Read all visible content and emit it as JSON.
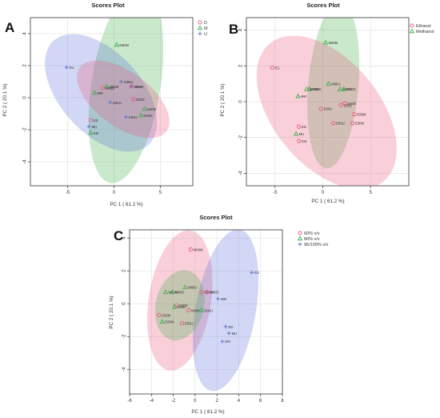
{
  "colors": {
    "D": "#e8557a",
    "M": "#3fae49",
    "U": "#5b6fd6",
    "frame": "#333333",
    "grid": "#dddddd"
  },
  "chart_data": [
    {
      "panel_label": "A",
      "type": "scatter",
      "title": "Scores Plot",
      "xlabel": "PC 1 ( 61.2 %)",
      "ylabel": "PC 2 ( 20.1 %)",
      "xlim": [
        -9,
        8.5
      ],
      "ylim": [
        -5.5,
        5
      ],
      "x_ticks": [
        -5,
        0,
        5
      ],
      "y_ticks": [
        -4,
        -2,
        0,
        2,
        4
      ],
      "grid": true,
      "legend_position": "top-right",
      "legend": [
        {
          "label": "D",
          "marker": "circle",
          "color_key": "D"
        },
        {
          "label": "M",
          "marker": "triangle",
          "color_key": "M"
        },
        {
          "label": "U",
          "marker": "plus",
          "color_key": "U"
        }
      ],
      "ellipses": [
        {
          "group": "M",
          "cx": 1.3,
          "cy": 0.8,
          "rx": 6.4,
          "ry": 3.6,
          "angle": 70
        },
        {
          "group": "U",
          "cx": -1.4,
          "cy": 0.3,
          "rx": 6.4,
          "ry": 3.0,
          "angle": -22
        },
        {
          "group": "D",
          "cx": 1.0,
          "cy": -0.1,
          "rx": 5.2,
          "ry": 1.9,
          "angle": -18
        }
      ],
      "points": [
        {
          "label": "EU",
          "x": -5.1,
          "y": 1.9,
          "group": "U"
        },
        {
          "label": "M60M",
          "x": 0.3,
          "y": 3.3,
          "group": "M"
        },
        {
          "label": "M80U",
          "x": 0.8,
          "y": 1.0,
          "group": "U"
        },
        {
          "label": "M80M",
          "x": -0.8,
          "y": 0.7,
          "group": "M"
        },
        {
          "label": "M80D",
          "x": -1.2,
          "y": 0.6,
          "group": "D"
        },
        {
          "label": "M60U",
          "x": 1.9,
          "y": 0.7,
          "group": "U"
        },
        {
          "label": "M60D",
          "x": 1.9,
          "y": 0.7,
          "group": "D"
        },
        {
          "label": "MM",
          "x": -2.1,
          "y": 0.3,
          "group": "M"
        },
        {
          "label": "E80U",
          "x": -0.4,
          "y": -0.3,
          "group": "U"
        },
        {
          "label": "E80D",
          "x": 2.1,
          "y": -0.1,
          "group": "D"
        },
        {
          "label": "E80M",
          "x": 3.3,
          "y": -0.7,
          "group": "M"
        },
        {
          "label": "E60M",
          "x": 2.9,
          "y": -1.1,
          "group": "M"
        },
        {
          "label": "E60U",
          "x": 1.3,
          "y": -1.2,
          "group": "U"
        },
        {
          "label": "ED",
          "x": -2.5,
          "y": -1.4,
          "group": "D"
        },
        {
          "label": "MU",
          "x": -2.7,
          "y": -1.8,
          "group": "U"
        },
        {
          "label": "EM",
          "x": -2.5,
          "y": -2.2,
          "group": "M"
        }
      ]
    },
    {
      "panel_label": "B",
      "type": "scatter",
      "title": "Scores Plot",
      "xlabel": "PC 1 ( 61.2 %)",
      "ylabel": "PC 2 ( 20.1 %)",
      "xlim": [
        -8,
        9
      ],
      "ylim": [
        -4.7,
        4.7
      ],
      "x_ticks": [
        -5,
        0,
        5
      ],
      "y_ticks": [
        -4,
        -2,
        0,
        2,
        4
      ],
      "grid": true,
      "legend_position": "top-right",
      "legend": [
        {
          "label": "Ethanol",
          "marker": "circle",
          "color_key": "D"
        },
        {
          "label": "Methanol",
          "marker": "triangle",
          "color_key": "M"
        }
      ],
      "ellipses": [
        {
          "group": "M",
          "cx": 1.1,
          "cy": 0.9,
          "rx": 4.7,
          "ry": 2.6,
          "angle": 78
        },
        {
          "group": "D",
          "cx": 0.4,
          "cy": -0.6,
          "rx": 7.7,
          "ry": 3.6,
          "angle": -20
        }
      ],
      "points": [
        {
          "label": "EU",
          "x": -5.3,
          "y": 1.9,
          "group": "D"
        },
        {
          "label": "M60M",
          "x": 0.3,
          "y": 3.3,
          "group": "M"
        },
        {
          "label": "M80U",
          "x": 0.6,
          "y": 1.0,
          "group": "M"
        },
        {
          "label": "M80D",
          "x": -1.4,
          "y": 0.7,
          "group": "M"
        },
        {
          "label": "M80M",
          "x": -1.7,
          "y": 0.7,
          "group": "M"
        },
        {
          "label": "M60U",
          "x": 1.8,
          "y": 0.7,
          "group": "M"
        },
        {
          "label": "M60D",
          "x": 2.2,
          "y": 0.7,
          "group": "M"
        },
        {
          "label": "MM",
          "x": -2.6,
          "y": 0.3,
          "group": "M"
        },
        {
          "label": "E80U",
          "x": -0.2,
          "y": -0.4,
          "group": "D"
        },
        {
          "label": "E60D",
          "x": 1.9,
          "y": -0.2,
          "group": "D"
        },
        {
          "label": "E80D",
          "x": 2.3,
          "y": -0.1,
          "group": "D"
        },
        {
          "label": "E80M",
          "x": 3.3,
          "y": -0.7,
          "group": "D"
        },
        {
          "label": "E60M",
          "x": 3.1,
          "y": -1.2,
          "group": "D"
        },
        {
          "label": "E60U",
          "x": 1.1,
          "y": -1.2,
          "group": "D"
        },
        {
          "label": "ED",
          "x": -2.5,
          "y": -1.4,
          "group": "D"
        },
        {
          "label": "MU",
          "x": -2.8,
          "y": -1.8,
          "group": "M"
        },
        {
          "label": "EM",
          "x": -2.5,
          "y": -2.2,
          "group": "D"
        }
      ]
    },
    {
      "panel_label": "C",
      "type": "scatter",
      "title": "Scores Plot",
      "xlabel": "PC 1 ( 61.2 %)",
      "ylabel": "PC 2 ( 20.1 %)",
      "xlim": [
        -6,
        8
      ],
      "ylim": [
        -5.5,
        4.5
      ],
      "x_ticks": [
        -6,
        -4,
        -2,
        0,
        2,
        4,
        6,
        8
      ],
      "y_ticks": [
        -4,
        -2,
        0,
        2,
        4
      ],
      "grid": true,
      "legend_position": "top-right",
      "legend": [
        {
          "label": "60% v/v",
          "marker": "circle",
          "color_key": "D"
        },
        {
          "label": "80% v/v",
          "marker": "triangle",
          "color_key": "M"
        },
        {
          "label": "96/100% v/v",
          "marker": "plus",
          "color_key": "U"
        }
      ],
      "ellipses": [
        {
          "group": "D",
          "cx": -1.4,
          "cy": 0.2,
          "rx": 4.4,
          "ry": 2.8,
          "angle": 72
        },
        {
          "group": "U",
          "cx": 2.8,
          "cy": -0.4,
          "rx": 5.1,
          "ry": 2.7,
          "angle": 72
        },
        {
          "group": "M",
          "cx": -1.4,
          "cy": -0.1,
          "rx": 2.4,
          "ry": 2.0,
          "angle": 35
        }
      ],
      "points": [
        {
          "label": "M60M",
          "x": -0.4,
          "y": 3.3,
          "group": "D"
        },
        {
          "label": "EU",
          "x": 5.2,
          "y": 1.9,
          "group": "U"
        },
        {
          "label": "M80U",
          "x": -0.9,
          "y": 1.0,
          "group": "M"
        },
        {
          "label": "M80M",
          "x": -2.7,
          "y": 0.7,
          "group": "M"
        },
        {
          "label": "M80D",
          "x": -2.1,
          "y": 0.7,
          "group": "M"
        },
        {
          "label": "M60U",
          "x": 0.6,
          "y": 0.7,
          "group": "D"
        },
        {
          "label": "M60D",
          "x": 1.1,
          "y": 0.7,
          "group": "D"
        },
        {
          "label": "MM",
          "x": 2.1,
          "y": 0.3,
          "group": "U"
        },
        {
          "label": "E60D",
          "x": -1.7,
          "y": -0.1,
          "group": "D"
        },
        {
          "label": "E80D",
          "x": -1.9,
          "y": -0.2,
          "group": "M"
        },
        {
          "label": "M60D",
          "x": -0.6,
          "y": -0.4,
          "group": "D"
        },
        {
          "label": "E80U",
          "x": 0.6,
          "y": -0.4,
          "group": "M"
        },
        {
          "label": "E60M",
          "x": -3.3,
          "y": -0.7,
          "group": "D"
        },
        {
          "label": "E80M",
          "x": -3.0,
          "y": -1.1,
          "group": "M"
        },
        {
          "label": "E60U",
          "x": -1.2,
          "y": -1.2,
          "group": "D"
        },
        {
          "label": "ED",
          "x": 2.8,
          "y": -1.4,
          "group": "U"
        },
        {
          "label": "MU",
          "x": 3.1,
          "y": -1.8,
          "group": "U"
        },
        {
          "label": "EM",
          "x": 2.5,
          "y": -2.3,
          "group": "U"
        }
      ]
    }
  ]
}
